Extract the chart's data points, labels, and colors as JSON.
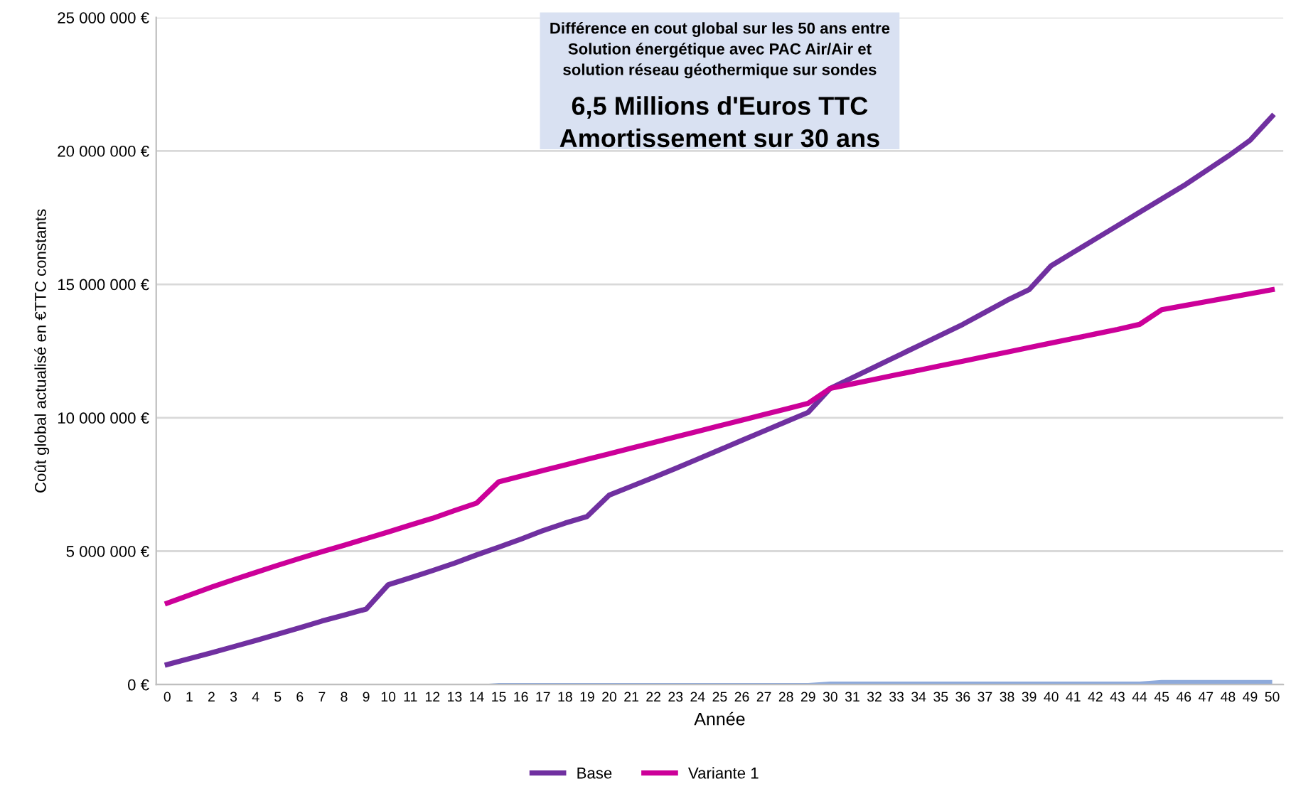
{
  "chart_data": {
    "type": "line",
    "xlabel": "Année",
    "ylabel": "Coût global actualisé en €TTC constants",
    "categories": [
      "0",
      "1",
      "2",
      "3",
      "4",
      "5",
      "6",
      "7",
      "8",
      "9",
      "10",
      "11",
      "12",
      "13",
      "14",
      "15",
      "16",
      "17",
      "18",
      "19",
      "20",
      "21",
      "22",
      "23",
      "24",
      "25",
      "26",
      "27",
      "28",
      "29",
      "30",
      "31",
      "32",
      "33",
      "34",
      "35",
      "36",
      "37",
      "38",
      "39",
      "40",
      "41",
      "42",
      "43",
      "44",
      "45",
      "46",
      "47",
      "48",
      "49",
      "50"
    ],
    "series": [
      {
        "name": "Base",
        "color": "#7030a0",
        "values": [
          750000,
          970000,
          1190000,
          1420000,
          1650000,
          1890000,
          2130000,
          2380000,
          2600000,
          2830000,
          3740000,
          4000000,
          4270000,
          4550000,
          4860000,
          5150000,
          5450000,
          5770000,
          6050000,
          6300000,
          7100000,
          7430000,
          7760000,
          8100000,
          8450000,
          8800000,
          9150000,
          9500000,
          9850000,
          10200000,
          11100000,
          11500000,
          11900000,
          12300000,
          12700000,
          13100000,
          13500000,
          13950000,
          14400000,
          14800000,
          15700000,
          16200000,
          16700000,
          17200000,
          17700000,
          18200000,
          18700000,
          19250000,
          19800000,
          20400000,
          21300000
        ]
      },
      {
        "name": "Variante 1",
        "color": "#cc0099",
        "values": [
          3050000,
          3350000,
          3650000,
          3930000,
          4200000,
          4470000,
          4730000,
          4980000,
          5220000,
          5470000,
          5720000,
          5980000,
          6230000,
          6520000,
          6800000,
          7600000,
          7810000,
          8020000,
          8230000,
          8440000,
          8650000,
          8860000,
          9070000,
          9280000,
          9490000,
          9700000,
          9910000,
          10120000,
          10330000,
          10540000,
          11100000,
          11270000,
          11440000,
          11610000,
          11780000,
          11950000,
          12120000,
          12290000,
          12460000,
          12630000,
          12800000,
          12970000,
          13140000,
          13310000,
          13500000,
          14050000,
          14200000,
          14350000,
          14500000,
          14650000,
          14800000
        ]
      },
      {
        "type": "area",
        "color": "#8eaadb",
        "values": [
          0,
          0,
          0,
          0,
          0,
          0,
          0,
          0,
          0,
          0,
          0,
          0,
          0,
          0,
          0,
          60000,
          60000,
          60000,
          60000,
          60000,
          60000,
          60000,
          60000,
          60000,
          60000,
          60000,
          60000,
          60000,
          60000,
          60000,
          110000,
          110000,
          110000,
          110000,
          110000,
          110000,
          110000,
          110000,
          110000,
          110000,
          110000,
          110000,
          110000,
          110000,
          110000,
          170000,
          170000,
          170000,
          170000,
          170000,
          170000
        ]
      }
    ],
    "ylim": [
      0,
      25000000
    ],
    "yticks": [
      {
        "value": 0,
        "label": "0 €"
      },
      {
        "value": 5000000,
        "label": "5 000 000 €"
      },
      {
        "value": 10000000,
        "label": "10 000 000 €"
      },
      {
        "value": 15000000,
        "label": "15 000 000 €"
      },
      {
        "value": 20000000,
        "label": "20 000 000 €"
      },
      {
        "value": 25000000,
        "label": "25 000 000 €"
      }
    ],
    "grid": "y",
    "legend": "bottom",
    "marker": "none",
    "line_style": "solid",
    "annotations": [
      "Différence en cout global sur les 50 ans entre\nSolution énergétique avec PAC Air/Air et\nsolution réseau géothermique sur sondes",
      "6,5 Millions d'Euros TTC\nAmortissement sur 30 ans"
    ]
  }
}
